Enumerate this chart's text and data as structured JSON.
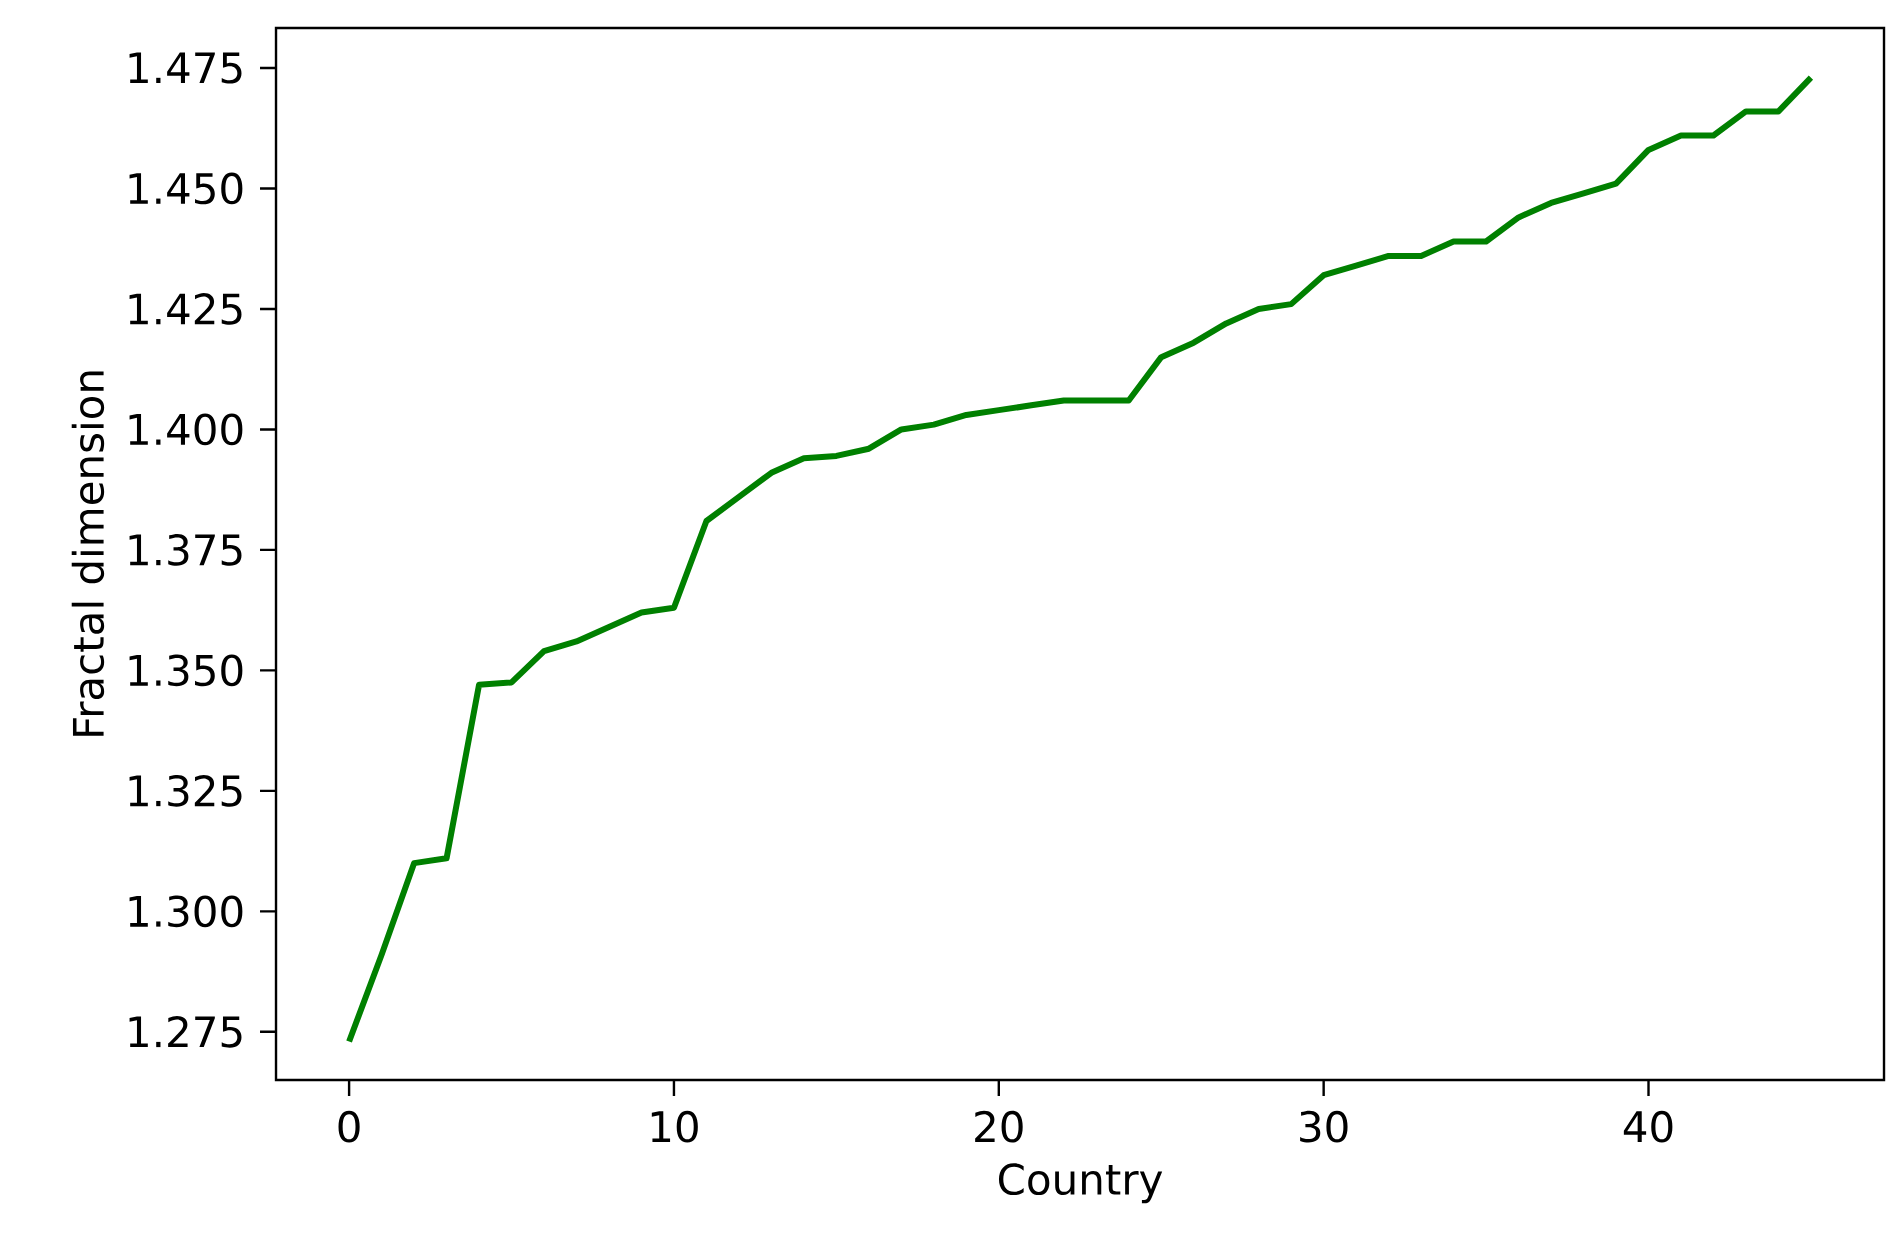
{
  "chart_data": {
    "type": "line",
    "xlabel": "Country",
    "ylabel": "Fractal dimension",
    "x": [
      0,
      1,
      2,
      3,
      4,
      5,
      6,
      7,
      8,
      9,
      10,
      11,
      12,
      13,
      14,
      15,
      16,
      17,
      18,
      19,
      20,
      21,
      22,
      23,
      24,
      25,
      26,
      27,
      28,
      29,
      30,
      31,
      32,
      33,
      34,
      35,
      36,
      37,
      38,
      39,
      40,
      41,
      42,
      43,
      44,
      45
    ],
    "series": [
      {
        "color": "#008000",
        "values": [
          1.273,
          1.291,
          1.31,
          1.311,
          1.347,
          1.3475,
          1.354,
          1.356,
          1.359,
          1.362,
          1.363,
          1.381,
          1.386,
          1.391,
          1.394,
          1.3945,
          1.396,
          1.4,
          1.401,
          1.403,
          1.404,
          1.405,
          1.406,
          1.406,
          1.406,
          1.415,
          1.418,
          1.422,
          1.425,
          1.426,
          1.432,
          1.434,
          1.436,
          1.436,
          1.439,
          1.439,
          1.444,
          1.447,
          1.449,
          1.451,
          1.458,
          1.461,
          1.461,
          1.466,
          1.466,
          1.473
        ]
      }
    ],
    "xlim": [
      -2.25,
      47.25
    ],
    "ylim": [
      1.265,
      1.4833
    ],
    "xticks": [
      0,
      10,
      20,
      30,
      40
    ],
    "yticks": [
      {
        "value": 1.275,
        "label": "1.275"
      },
      {
        "value": 1.3,
        "label": "1.300"
      },
      {
        "value": 1.325,
        "label": "1.325"
      },
      {
        "value": 1.35,
        "label": "1.350"
      },
      {
        "value": 1.375,
        "label": "1.375"
      },
      {
        "value": 1.4,
        "label": "1.400"
      },
      {
        "value": 1.425,
        "label": "1.425"
      },
      {
        "value": 1.45,
        "label": "1.450"
      },
      {
        "value": 1.475,
        "label": "1.475"
      }
    ],
    "grid": false,
    "marker": "none",
    "line_style": "solid"
  }
}
